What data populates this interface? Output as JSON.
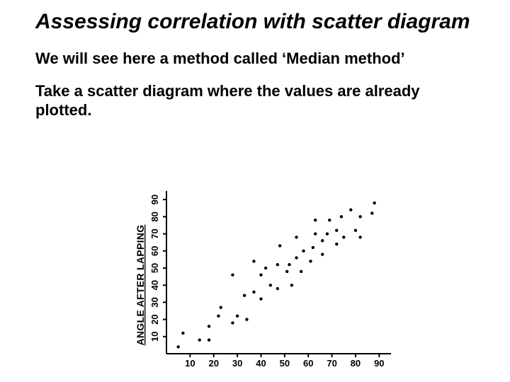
{
  "title": "Assessing correlation with scatter diagram",
  "para1": "We will see here a method  called ‘Median method’",
  "para2": "Take a scatter diagram where the values are already plotted.",
  "scatter": {
    "type": "scatter",
    "xlabel": "",
    "ylabel": "ANGLE AFTER LAPPING",
    "xlim": [
      0,
      95
    ],
    "ylim": [
      0,
      95
    ],
    "xticks": [
      10,
      20,
      30,
      40,
      50,
      60,
      70,
      80,
      90
    ],
    "yticks": [
      10,
      20,
      30,
      40,
      50,
      60,
      70,
      80,
      90
    ],
    "background_color": "#ffffff",
    "axis_color": "#000000",
    "tick_color": "#000000",
    "tick_fontsize": 13,
    "ylabel_fontsize": 14,
    "marker_radius": 2.2,
    "marker_color": "#000000",
    "points": [
      [
        5,
        4
      ],
      [
        7,
        12
      ],
      [
        14,
        8
      ],
      [
        18,
        8
      ],
      [
        18,
        16
      ],
      [
        22,
        22
      ],
      [
        23,
        27
      ],
      [
        28,
        18
      ],
      [
        28,
        46
      ],
      [
        30,
        22
      ],
      [
        33,
        34
      ],
      [
        34,
        20
      ],
      [
        37,
        36
      ],
      [
        37,
        54
      ],
      [
        40,
        32
      ],
      [
        40,
        46
      ],
      [
        42,
        50
      ],
      [
        44,
        40
      ],
      [
        47,
        38
      ],
      [
        47,
        52
      ],
      [
        48,
        63
      ],
      [
        51,
        48
      ],
      [
        52,
        52
      ],
      [
        53,
        40
      ],
      [
        55,
        56
      ],
      [
        55,
        68
      ],
      [
        57,
        48
      ],
      [
        58,
        60
      ],
      [
        61,
        54
      ],
      [
        62,
        62
      ],
      [
        63,
        70
      ],
      [
        63,
        78
      ],
      [
        66,
        66
      ],
      [
        66,
        58
      ],
      [
        68,
        70
      ],
      [
        69,
        78
      ],
      [
        72,
        64
      ],
      [
        72,
        72
      ],
      [
        74,
        80
      ],
      [
        75,
        68
      ],
      [
        78,
        84
      ],
      [
        80,
        72
      ],
      [
        82,
        80
      ],
      [
        82,
        68
      ],
      [
        87,
        82
      ],
      [
        88,
        88
      ]
    ]
  }
}
